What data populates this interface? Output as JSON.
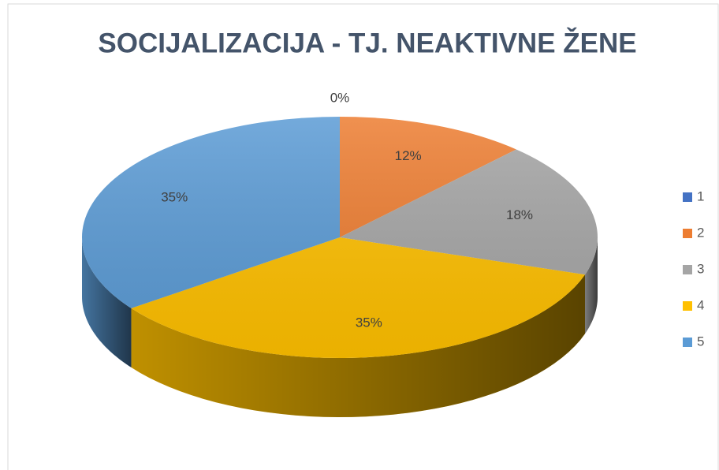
{
  "chart_data": {
    "type": "pie3d",
    "title": "SOCIJALIZACIJA - TJ. NEAKTIVNE ŽENE",
    "categories": [
      "1",
      "2",
      "3",
      "4",
      "5"
    ],
    "values": [
      0,
      12,
      18,
      35,
      35
    ],
    "value_labels": [
      "0%",
      "12%",
      "18%",
      "35%",
      "35%"
    ],
    "colors": [
      "#4472c4",
      "#ed7d31",
      "#a5a5a5",
      "#ffc000",
      "#5b9bd5"
    ],
    "legend": "right"
  }
}
